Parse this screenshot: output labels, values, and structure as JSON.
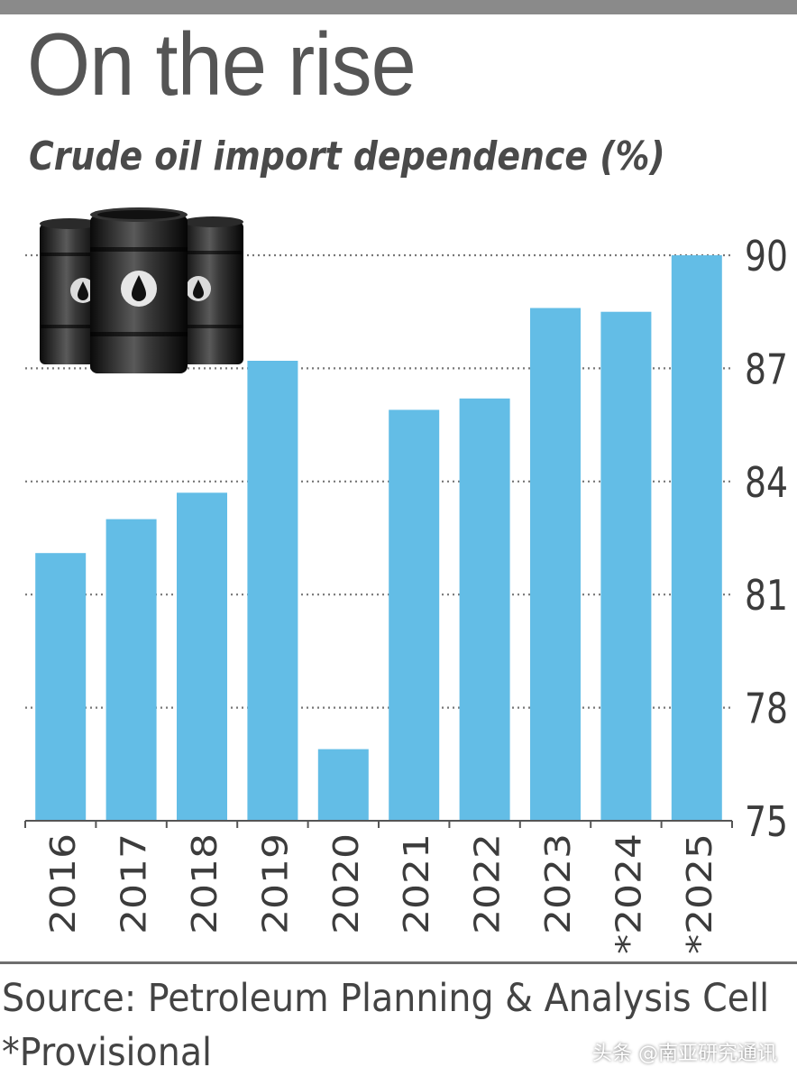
{
  "colors": {
    "bar": "#63bde6",
    "grid": "#777777",
    "axis_text": "#3c3c3c",
    "title": "#555555"
  },
  "chart_data": {
    "type": "bar",
    "title": "On the rise",
    "subtitle": "Crude oil import dependence (%)",
    "categories": [
      "2016",
      "2017",
      "2018",
      "2019",
      "2020",
      "2021",
      "2022",
      "2023",
      "*2024",
      "*2025"
    ],
    "values": [
      82.1,
      83.0,
      83.7,
      87.2,
      76.9,
      85.9,
      86.2,
      88.6,
      88.5,
      90.0
    ],
    "y_ticks": [
      "75",
      "78",
      "81",
      "84",
      "87",
      "90"
    ],
    "ylim": [
      75,
      90
    ],
    "grid": true,
    "y_axis_position": "right",
    "xlabel": "",
    "ylabel": ""
  },
  "decoration": {
    "icon": "oil-barrels-icon"
  },
  "footer": {
    "source": "Source: Petroleum Planning & Analysis Cell",
    "note": "*Provisional",
    "watermark": "头条 @南亚研究通讯"
  }
}
